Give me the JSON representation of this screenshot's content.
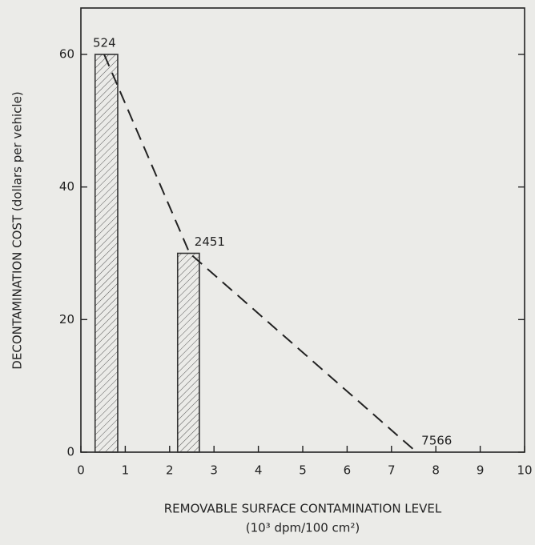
{
  "chart_data": {
    "type": "bar",
    "xlabel": "REMOVABLE SURFACE CONTAMINATION LEVEL",
    "xlabel_units": "(10³ dpm/100 cm²)",
    "ylabel": "DECONTAMINATION COST (dollars per vehicle)",
    "xlim": [
      0,
      10
    ],
    "xticks": [
      0,
      1,
      2,
      3,
      4,
      5,
      6,
      7,
      8,
      9,
      10
    ],
    "ylim": [
      0,
      67
    ],
    "yticks": [
      0,
      20,
      40,
      60
    ],
    "bars": {
      "left": [
        0.32,
        2.18
      ],
      "right": [
        0.83,
        2.67
      ],
      "values": [
        60,
        30
      ],
      "color": "#333333"
    },
    "line": {
      "x": [
        0.524,
        2.451,
        7.566
      ],
      "values": [
        60,
        30,
        0
      ],
      "x_labels": [
        "524",
        "2451",
        "7566"
      ],
      "color": "#222222",
      "dashed": true
    }
  }
}
